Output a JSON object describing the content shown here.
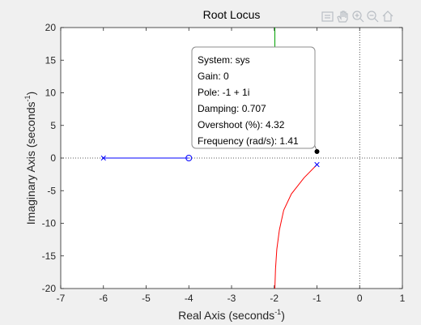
{
  "toolbar": {
    "icons": [
      "export-icon",
      "pan-icon",
      "zoom-in-icon",
      "zoom-out-icon",
      "home-icon"
    ]
  },
  "chart_data": {
    "type": "line",
    "title": "Root Locus",
    "xlabel_text": "Real Axis (seconds",
    "xlabel_sup": "-1",
    "xlabel_close": ")",
    "ylabel_text": "Imaginary Axis (seconds",
    "ylabel_sup": "-1",
    "ylabel_close": ")",
    "xlim": [
      -7,
      1
    ],
    "ylim": [
      -20,
      20
    ],
    "xticks": [
      -7,
      -6,
      -5,
      -4,
      -3,
      -2,
      -1,
      0,
      1
    ],
    "yticks": [
      -20,
      -15,
      -10,
      -5,
      0,
      5,
      10,
      15,
      20
    ],
    "grid": false,
    "colors": {
      "blue": "#0000ff",
      "red": "#ff0000",
      "green": "#00a000",
      "axis": "#262626"
    },
    "series": [
      {
        "color": "#0000ff",
        "points": [
          [
            -6,
            0
          ],
          [
            -4,
            0
          ]
        ]
      },
      {
        "color": "#ff0000",
        "points": [
          [
            -1,
            -1
          ],
          [
            -1.3,
            -3
          ],
          [
            -1.6,
            -5.5
          ],
          [
            -1.78,
            -8
          ],
          [
            -1.88,
            -11
          ],
          [
            -1.94,
            -14
          ],
          [
            -1.97,
            -17
          ],
          [
            -1.985,
            -20
          ]
        ]
      },
      {
        "color": "#00a000",
        "points": [
          [
            -1.985,
            20
          ],
          [
            -1.985,
            16.5
          ]
        ]
      }
    ],
    "poles": [
      [
        -6,
        0
      ],
      [
        -1,
        -1
      ]
    ],
    "zeros": [
      [
        -4,
        0
      ]
    ],
    "selected_point": [
      -1,
      1
    ],
    "datatip": [
      "System: sys",
      "Gain: 0",
      "Pole: -1 + 1i",
      "Damping: 0.707",
      "Overshoot (%): 4.32",
      "Frequency (rad/s): 1.41"
    ]
  }
}
